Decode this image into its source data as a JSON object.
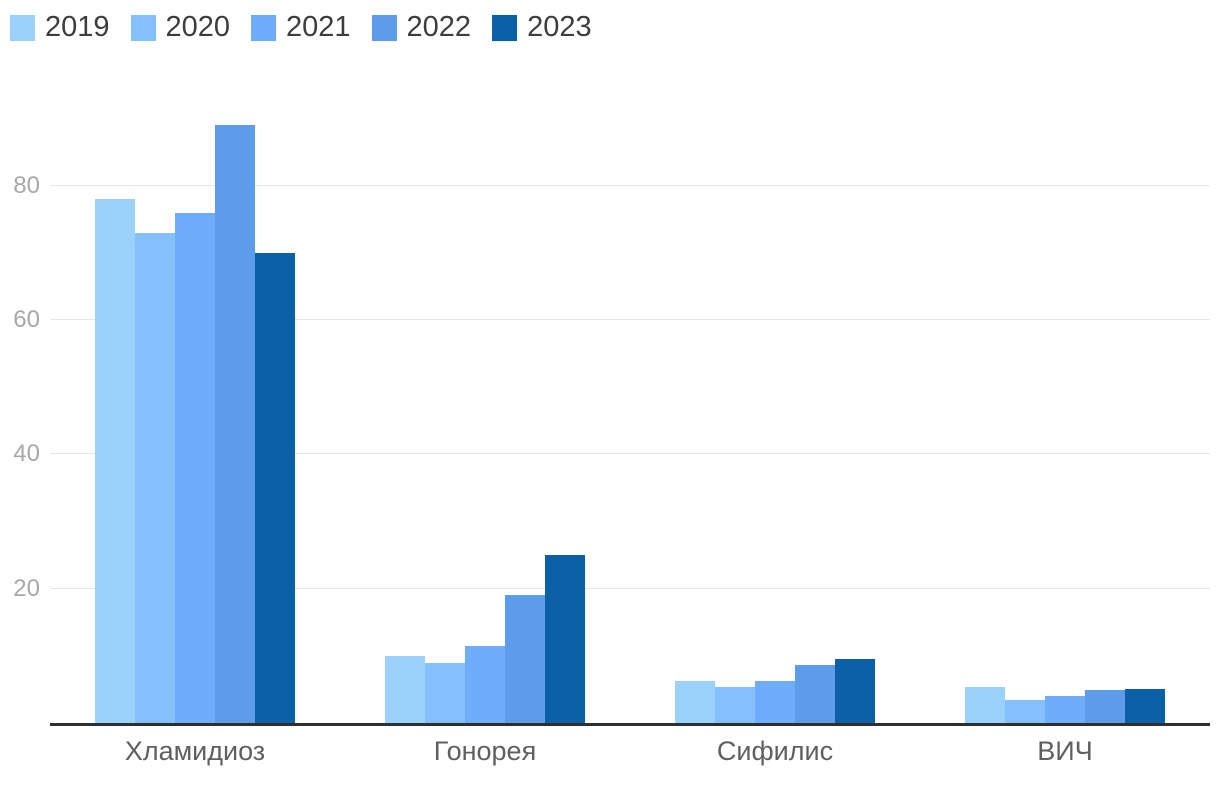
{
  "chart_data": {
    "type": "bar",
    "title": "",
    "xlabel": "",
    "ylabel": "",
    "categories": [
      "Хламидиоз",
      "Гонорея",
      "Сифилис",
      "ВИЧ"
    ],
    "series": [
      {
        "name": "2019",
        "color": "#9bd2fc",
        "values": [
          78,
          10,
          6.3,
          5.3
        ]
      },
      {
        "name": "2020",
        "color": "#84c0fb",
        "values": [
          73,
          9,
          5.3,
          3.5
        ]
      },
      {
        "name": "2021",
        "color": "#6fadfb",
        "values": [
          76,
          11.5,
          6.3,
          4
        ]
      },
      {
        "name": "2022",
        "color": "#5c9ce8",
        "values": [
          89,
          19,
          8.7,
          4.9
        ]
      },
      {
        "name": "2023",
        "color": "#0c60a6",
        "values": [
          70,
          25,
          9.6,
          5
        ]
      }
    ],
    "yticks": [
      20,
      40,
      60,
      80
    ],
    "ylim": [
      0,
      95
    ],
    "grid": true,
    "legend_position": "top-left",
    "colors": {
      "axis_line": "#2f2f2f",
      "gridline": "#e7e7e7",
      "y_tick_label": "#a8a8a8",
      "category_label": "#5f5f5f",
      "legend_label": "#3d3d3d",
      "background": "#ffffff"
    }
  }
}
